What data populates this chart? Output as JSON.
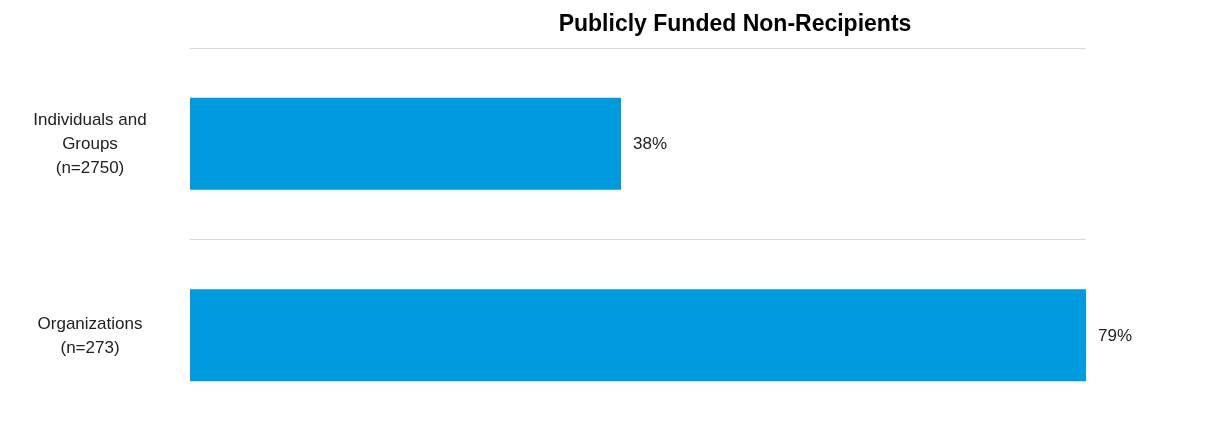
{
  "chart_data": {
    "type": "bar",
    "orientation": "horizontal",
    "title": "Publicly Funded Non-Recipients",
    "categories": [
      "Individuals and\nGroups\n(n=2750)",
      "Organizations\n(n=273)"
    ],
    "values": [
      38,
      79
    ],
    "value_labels": [
      "38%",
      "79%"
    ],
    "color": "#009ade",
    "grid": "y"
  }
}
